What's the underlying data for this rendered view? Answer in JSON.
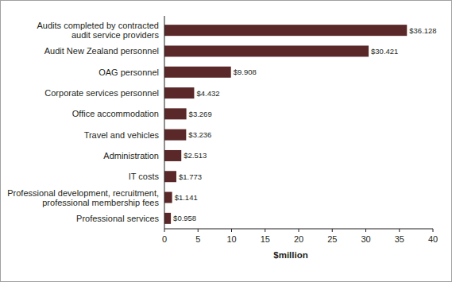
{
  "chart_data": {
    "type": "bar",
    "orientation": "horizontal",
    "categories": [
      "Audits completed by contracted\naudit service providers",
      "Audit New Zealand personnel",
      "OAG personnel",
      "Corporate services personnel",
      "Office accommodation",
      "Travel and vehicles",
      "Administration",
      "IT costs",
      "Professional development, recruitment,\nprofessional membership fees",
      "Professional services"
    ],
    "values": [
      36.128,
      30.421,
      9.908,
      4.432,
      3.269,
      3.236,
      2.513,
      1.773,
      1.141,
      0.958
    ],
    "value_labels": [
      "$36.128",
      "$30.421",
      "$9.908",
      "$4.432",
      "$3.269",
      "$3.236",
      "$2.513",
      "$1.773",
      "$1.141",
      "$0.958"
    ],
    "data_labels": true,
    "color": "#5a2828",
    "x_label": "$million",
    "xlim": [
      0,
      40
    ],
    "xticks": [
      0,
      5,
      10,
      15,
      20,
      25,
      30,
      35,
      40
    ],
    "grid": false
  }
}
